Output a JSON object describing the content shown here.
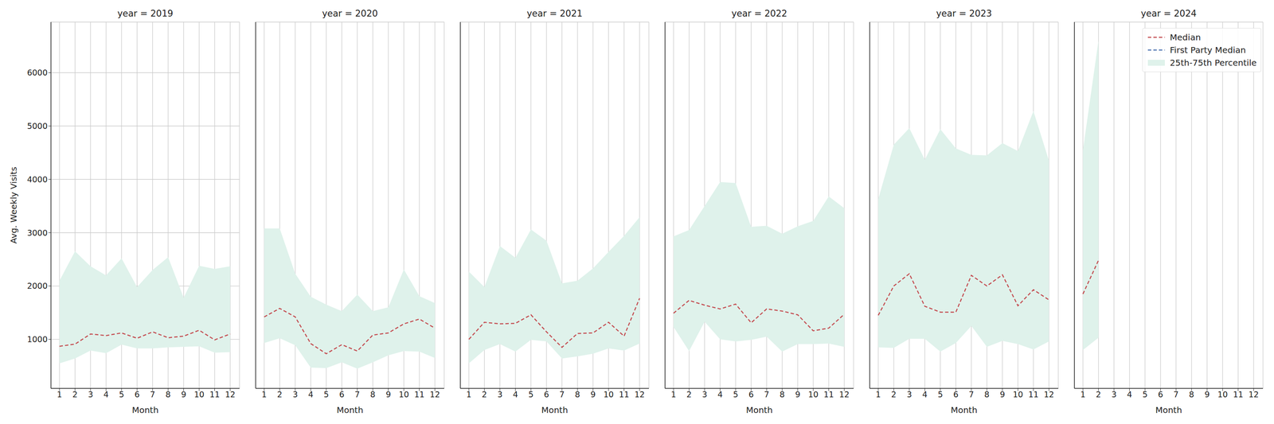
{
  "chart_data": [
    {
      "type": "line",
      "title": "year = 2019",
      "xlabel": "Month",
      "ylabel": "Avg. Weekly Visits",
      "x": [
        1,
        2,
        3,
        4,
        5,
        6,
        7,
        8,
        9,
        10,
        11,
        12
      ],
      "xlim": [
        0.45,
        12.6
      ],
      "xticks": [
        1,
        2,
        3,
        4,
        5,
        6,
        7,
        8,
        9,
        10,
        11,
        12
      ],
      "ylim": [
        80,
        6950
      ],
      "yticks": [
        1000,
        2000,
        3000,
        4000,
        5000,
        6000
      ],
      "grid": true,
      "series": [
        {
          "name": "Median",
          "type": "line",
          "color": "#c44e52",
          "line_style": "dashed",
          "values": [
            870,
            910,
            1100,
            1070,
            1120,
            1020,
            1140,
            1030,
            1060,
            1170,
            990,
            1100
          ]
        },
        {
          "name": "First Party Median",
          "type": "line",
          "color": "#4c72b0",
          "line_style": "dashed",
          "values": [
            null,
            null,
            null,
            null,
            null,
            null,
            null,
            null,
            null,
            null,
            null,
            null
          ]
        },
        {
          "name": "25th-75th Percentile",
          "type": "band",
          "color": "#dff2eb",
          "low": [
            550,
            640,
            790,
            740,
            900,
            830,
            830,
            850,
            860,
            870,
            750,
            760
          ],
          "high": [
            2100,
            2650,
            2370,
            2200,
            2520,
            1980,
            2300,
            2540,
            1780,
            2380,
            2320,
            2370
          ]
        }
      ]
    },
    {
      "type": "line",
      "title": "year = 2020",
      "xlabel": "Month",
      "x": [
        1,
        2,
        3,
        4,
        5,
        6,
        7,
        8,
        9,
        10,
        11,
        12
      ],
      "xlim": [
        0.45,
        12.6
      ],
      "xticks": [
        1,
        2,
        3,
        4,
        5,
        6,
        7,
        8,
        9,
        10,
        11,
        12
      ],
      "ylim": [
        80,
        6950
      ],
      "yticks": [
        1000,
        2000,
        3000,
        4000,
        5000,
        6000
      ],
      "grid": true,
      "tick_labels": "x",
      "series": [
        {
          "name": "Median",
          "type": "line",
          "color": "#c44e52",
          "line_style": "dashed",
          "values": [
            1420,
            1580,
            1420,
            920,
            730,
            900,
            780,
            1080,
            1120,
            1290,
            1380,
            1210
          ]
        },
        {
          "name": "First Party Median",
          "type": "line",
          "color": "#4c72b0",
          "line_style": "dashed",
          "values": [
            null,
            null,
            null,
            null,
            null,
            null,
            null,
            null,
            null,
            null,
            null,
            null
          ]
        },
        {
          "name": "25th-75th Percentile",
          "type": "band",
          "color": "#dff2eb",
          "low": [
            930,
            1020,
            890,
            470,
            460,
            570,
            450,
            570,
            700,
            780,
            770,
            650
          ],
          "high": [
            3080,
            3080,
            2230,
            1800,
            1650,
            1530,
            1840,
            1530,
            1600,
            2310,
            1810,
            1680
          ]
        }
      ]
    },
    {
      "type": "line",
      "title": "year = 2021",
      "xlabel": "Month",
      "x": [
        1,
        2,
        3,
        4,
        5,
        6,
        7,
        8,
        9,
        10,
        11,
        12
      ],
      "xlim": [
        0.45,
        12.6
      ],
      "xticks": [
        1,
        2,
        3,
        4,
        5,
        6,
        7,
        8,
        9,
        10,
        11,
        12
      ],
      "ylim": [
        80,
        6950
      ],
      "yticks": [
        1000,
        2000,
        3000,
        4000,
        5000,
        6000
      ],
      "grid": true,
      "tick_labels": "x",
      "series": [
        {
          "name": "Median",
          "type": "line",
          "color": "#c44e52",
          "line_style": "dashed",
          "values": [
            1000,
            1320,
            1290,
            1300,
            1460,
            1140,
            850,
            1110,
            1120,
            1320,
            1060,
            1770
          ]
        },
        {
          "name": "First Party Median",
          "type": "line",
          "color": "#4c72b0",
          "line_style": "dashed",
          "values": [
            null,
            null,
            null,
            null,
            null,
            null,
            null,
            null,
            null,
            null,
            null,
            null
          ]
        },
        {
          "name": "25th-75th Percentile",
          "type": "band",
          "color": "#dff2eb",
          "low": [
            550,
            800,
            910,
            770,
            990,
            960,
            640,
            680,
            730,
            830,
            790,
            920
          ],
          "high": [
            2270,
            1980,
            2750,
            2530,
            3060,
            2850,
            2050,
            2100,
            2330,
            2640,
            2940,
            3290
          ]
        }
      ]
    },
    {
      "type": "line",
      "title": "year = 2022",
      "xlabel": "Month",
      "x": [
        1,
        2,
        3,
        4,
        5,
        6,
        7,
        8,
        9,
        10,
        11,
        12
      ],
      "xlim": [
        0.45,
        12.6
      ],
      "xticks": [
        1,
        2,
        3,
        4,
        5,
        6,
        7,
        8,
        9,
        10,
        11,
        12
      ],
      "ylim": [
        80,
        6950
      ],
      "yticks": [
        1000,
        2000,
        3000,
        4000,
        5000,
        6000
      ],
      "grid": true,
      "tick_labels": "x",
      "series": [
        {
          "name": "Median",
          "type": "line",
          "color": "#c44e52",
          "line_style": "dashed",
          "values": [
            1490,
            1730,
            1640,
            1570,
            1660,
            1310,
            1570,
            1530,
            1460,
            1160,
            1210,
            1470
          ]
        },
        {
          "name": "First Party Median",
          "type": "line",
          "color": "#4c72b0",
          "line_style": "dashed",
          "values": [
            null,
            null,
            null,
            null,
            null,
            null,
            null,
            null,
            null,
            null,
            null,
            null
          ]
        },
        {
          "name": "25th-75th Percentile",
          "type": "band",
          "color": "#dff2eb",
          "low": [
            1230,
            780,
            1330,
            1000,
            960,
            990,
            1050,
            770,
            910,
            910,
            920,
            860
          ],
          "high": [
            2930,
            3050,
            3500,
            3950,
            3930,
            3110,
            3130,
            2980,
            3120,
            3220,
            3680,
            3460
          ]
        }
      ]
    },
    {
      "type": "line",
      "title": "year = 2023",
      "xlabel": "Month",
      "x": [
        1,
        2,
        3,
        4,
        5,
        6,
        7,
        8,
        9,
        10,
        11,
        12
      ],
      "xlim": [
        0.45,
        12.6
      ],
      "xticks": [
        1,
        2,
        3,
        4,
        5,
        6,
        7,
        8,
        9,
        10,
        11,
        12
      ],
      "ylim": [
        80,
        6950
      ],
      "yticks": [
        1000,
        2000,
        3000,
        4000,
        5000,
        6000
      ],
      "grid": true,
      "tick_labels": "x",
      "series": [
        {
          "name": "Median",
          "type": "line",
          "color": "#c44e52",
          "line_style": "dashed",
          "values": [
            1450,
            2000,
            2230,
            1620,
            1510,
            1510,
            2200,
            2000,
            2210,
            1630,
            1930,
            1740
          ]
        },
        {
          "name": "First Party Median",
          "type": "line",
          "color": "#4c72b0",
          "line_style": "dashed",
          "values": [
            null,
            null,
            null,
            null,
            null,
            null,
            null,
            null,
            null,
            null,
            null,
            null
          ]
        },
        {
          "name": "25th-75th Percentile",
          "type": "band",
          "color": "#dff2eb",
          "low": [
            850,
            840,
            1010,
            1010,
            770,
            930,
            1250,
            860,
            970,
            910,
            810,
            960
          ],
          "high": [
            3630,
            4650,
            4960,
            4370,
            4940,
            4580,
            4460,
            4450,
            4680,
            4530,
            5280,
            4350
          ]
        }
      ]
    },
    {
      "type": "line",
      "title": "year = 2024",
      "xlabel": "Month",
      "x": [
        1,
        2,
        3,
        4,
        5,
        6,
        7,
        8,
        9,
        10,
        11,
        12
      ],
      "xlim": [
        0.45,
        12.6
      ],
      "xticks": [
        1,
        2,
        3,
        4,
        5,
        6,
        7,
        8,
        9,
        10,
        11,
        12
      ],
      "ylim": [
        80,
        6950
      ],
      "yticks": [
        1000,
        2000,
        3000,
        4000,
        5000,
        6000
      ],
      "grid": true,
      "tick_labels": "x",
      "legend": "upper right",
      "series": [
        {
          "name": "Median",
          "type": "line",
          "color": "#c44e52",
          "line_style": "dashed",
          "values": [
            1850,
            2480,
            null,
            null,
            null,
            null,
            null,
            null,
            null,
            null,
            null,
            null
          ]
        },
        {
          "name": "First Party Median",
          "type": "line",
          "color": "#4c72b0",
          "line_style": "dashed",
          "values": [
            null,
            null,
            null,
            null,
            null,
            null,
            null,
            null,
            null,
            null,
            null,
            null
          ]
        },
        {
          "name": "25th-75th Percentile",
          "type": "band",
          "color": "#dff2eb",
          "low": [
            800,
            1030,
            null,
            null,
            null,
            null,
            null,
            null,
            null,
            null,
            null,
            null
          ],
          "high": [
            4550,
            6600,
            null,
            null,
            null,
            null,
            null,
            null,
            null,
            null,
            null,
            null
          ]
        }
      ]
    }
  ]
}
